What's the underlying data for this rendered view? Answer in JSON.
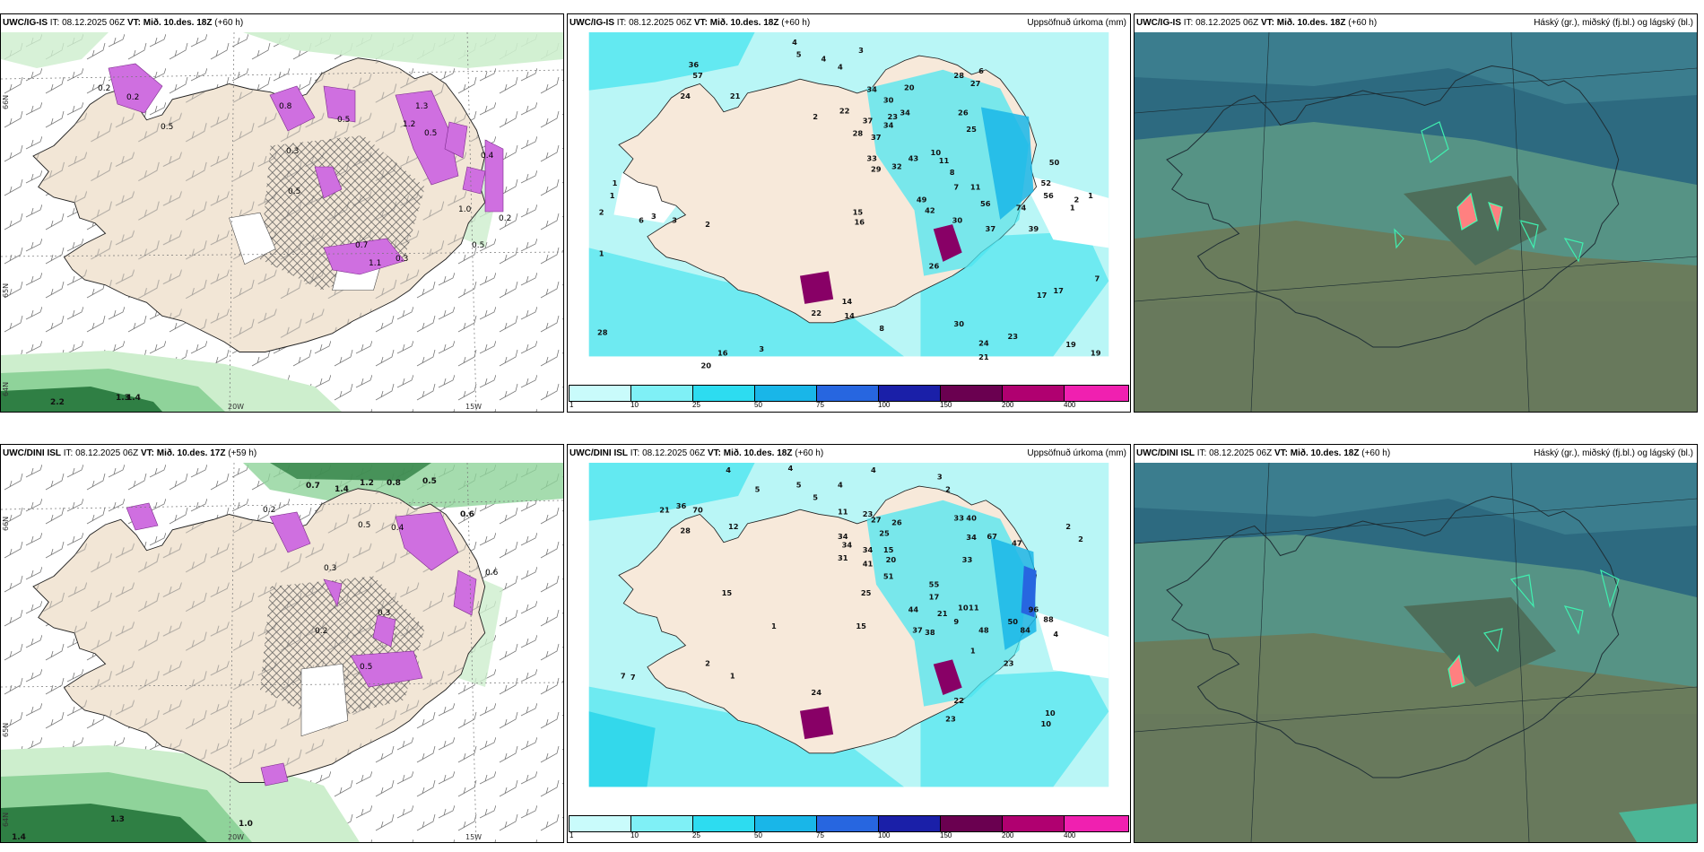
{
  "panels": [
    {
      "model": "UWC/IG-IS",
      "it_label": "IT:",
      "it_value": "08.12.2025 06Z",
      "vt_label": "VT:",
      "vt_value": "Mið. 10.des. 18Z",
      "lead": "(+60 h)",
      "right_title": "",
      "values": [
        "0.2",
        "0.2",
        "0.5",
        "0.8",
        "1.3",
        "1.2",
        "0.3",
        "0.5",
        "0.5",
        "0.5",
        "0.7",
        "1.1",
        "0.3",
        "0.4",
        "0.5",
        "0.2",
        "1.0",
        "2.2",
        "1.3",
        "1.4"
      ],
      "lon_labels": [
        "20W",
        "15W"
      ],
      "lat_labels": [
        "66N",
        "65N",
        "64N"
      ]
    },
    {
      "model": "UWC/IG-IS",
      "it_label": "IT:",
      "it_value": "08.12.2025 06Z",
      "vt_label": "VT:",
      "vt_value": "Mið. 10.des. 18Z",
      "lead": "(+60 h)",
      "right_title": "Uppsöfnuð úrkoma (mm)",
      "values": [
        "4",
        "5",
        "4",
        "3",
        "4",
        "2",
        "1",
        "36",
        "57",
        "24",
        "21",
        "34",
        "30",
        "20",
        "28",
        "27",
        "6",
        "22",
        "37",
        "28",
        "37",
        "34",
        "34",
        "23",
        "26",
        "25",
        "33",
        "32",
        "29",
        "43",
        "10",
        "11",
        "8",
        "7",
        "11",
        "49",
        "42",
        "30",
        "37",
        "56",
        "39",
        "74",
        "56",
        "52",
        "50",
        "2",
        "1",
        "1",
        "2",
        "1",
        "3",
        "3",
        "6",
        "2",
        "15",
        "16",
        "14",
        "22",
        "14",
        "8",
        "26",
        "30",
        "24",
        "23",
        "21",
        "19",
        "19",
        "20",
        "16",
        "3",
        "17",
        "17",
        "7",
        "28",
        "1"
      ],
      "legend": [
        "1",
        "10",
        "25",
        "50",
        "75",
        "100",
        "150",
        "200",
        "400"
      ]
    },
    {
      "model": "UWC/IG-IS",
      "it_label": "IT:",
      "it_value": "08.12.2025 06Z",
      "vt_label": "VT:",
      "vt_value": "Mið. 10.des. 18Z",
      "lead": "(+60 h)",
      "right_title": "Háský (gr.), miðský (fj.bl.) og lágský (bl.)"
    },
    {
      "model": "UWC/DINI ISL",
      "it_label": "IT:",
      "it_value": "08.12.2025 06Z",
      "vt_label": "VT:",
      "vt_value": "Mið. 10.des. 17Z",
      "lead": "(+59 h)",
      "right_title": "",
      "values": [
        "0.7",
        "1.4",
        "1.2",
        "0.8",
        "0.5",
        "0.6",
        "0.2",
        "0.5",
        "0.4",
        "0.3",
        "0.3",
        "0.6",
        "0.2",
        "0.5",
        "1.4",
        "1.3",
        "1.0"
      ],
      "lon_labels": [
        "20W",
        "15W"
      ],
      "lat_labels": [
        "66N",
        "65N",
        "64N"
      ]
    },
    {
      "model": "UWC/DINI ISL",
      "it_label": "IT:",
      "it_value": "08.12.2025 06Z",
      "vt_label": "VT:",
      "vt_value": "Mið. 10.des. 18Z",
      "lead": "(+60 h)",
      "right_title": "Uppsöfnuð úrkoma (mm)",
      "values": [
        "4",
        "4",
        "4",
        "3",
        "2",
        "5",
        "5",
        "5",
        "4",
        "21",
        "36",
        "70",
        "28",
        "12",
        "11",
        "34",
        "23",
        "25",
        "27",
        "26",
        "33",
        "40",
        "34",
        "67",
        "34",
        "34",
        "31",
        "41",
        "15",
        "20",
        "51",
        "25",
        "33",
        "47",
        "55",
        "15",
        "17",
        "21",
        "44",
        "10",
        "11",
        "9",
        "48",
        "37",
        "38",
        "96",
        "88",
        "84",
        "50",
        "23",
        "10",
        "10",
        "22",
        "23",
        "24",
        "4",
        "7",
        "7",
        "2",
        "2",
        "2",
        "1",
        "1",
        "1",
        "15"
      ],
      "legend": [
        "1",
        "10",
        "25",
        "50",
        "75",
        "100",
        "150",
        "200",
        "400"
      ]
    },
    {
      "model": "UWC/DINI ISL",
      "it_label": "IT:",
      "it_value": "08.12.2025 06Z",
      "vt_label": "VT:",
      "vt_value": "Mið. 10.des. 18Z",
      "lead": "(+60 h)",
      "right_title": "Háský (gr.), miðský (fj.bl.) og lágský (bl.)"
    }
  ],
  "colors": {
    "land": "#f2e6d6",
    "sea_snow": "#ffffff",
    "green_light": "#cdeecd",
    "green_mid": "#8fd39a",
    "green_dark": "#2f7f44",
    "pink": "#cf6fe0",
    "precip_light": "#b9f6f6",
    "precip_mid": "#4ee6f0",
    "precip_deep": "#2266dd",
    "precip_max": "#880066",
    "cloud_dark": "#2d6a80",
    "cloud_green": "#5e9a86",
    "cloud_olive": "#6b7a5a"
  },
  "legend_colors": [
    "#c9fbfb",
    "#7ff0f6",
    "#2ddcf0",
    "#19b6e8",
    "#2766e0",
    "#1a1fa8",
    "#6a0050",
    "#b00070",
    "#f020b0",
    "#f5a0f0"
  ]
}
